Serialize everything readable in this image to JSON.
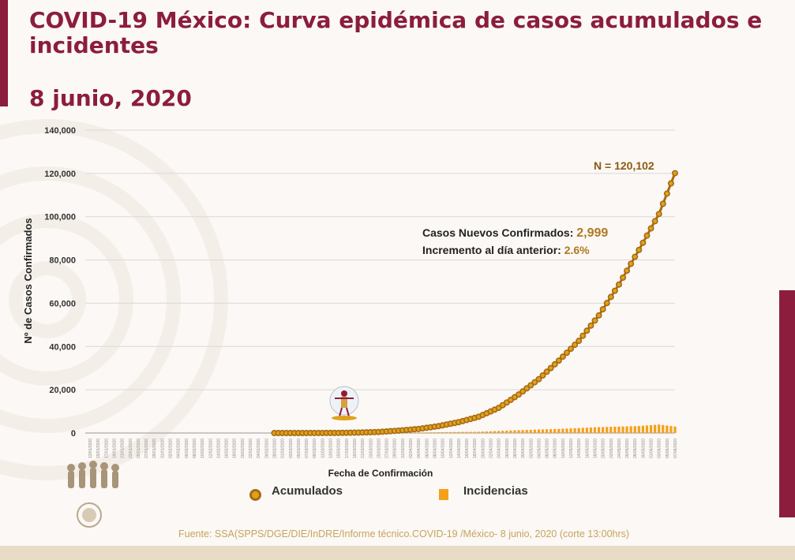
{
  "header": {
    "title_line1": "COVID-19 México: Curva epidémica de casos acumulados e",
    "title_line2": "incidentes",
    "date": "8 junio, 2020"
  },
  "annotation": {
    "new_cases_label": "Casos Nuevos Confirmados:",
    "new_cases_value": "2,999",
    "increase_label": "Incremento al día anterior:",
    "increase_value": "2.6%",
    "total_label": "N = 120,102"
  },
  "legend": {
    "accumulated": "Acumulados",
    "incidences": "Incidencias"
  },
  "source": "Fuente: SSA(SPPS/DGE/DIE/InDRE/Informe técnico.COVID-19 /México- 8 junio, 2020 (corte 13:00hrs)",
  "colors": {
    "brand": "#8c1d3c",
    "cumulative_line": "#a66a14",
    "cumulative_marker": "#e0a21c",
    "incidence_bar": "#f5a01a"
  },
  "icons": [
    "silhouette-icon",
    "emblem-icon",
    "seal-icon"
  ],
  "chart_data": {
    "type": "line",
    "xlabel": "Fecha de Confirmación",
    "ylabel": "Nº de Casos Confirmados",
    "ylim": [
      0,
      140000
    ],
    "yticks": [
      0,
      20000,
      40000,
      60000,
      80000,
      100000,
      120000,
      140000
    ],
    "ytick_labels": [
      "0",
      "20,000",
      "40,000",
      "60,000",
      "80,000",
      "100,000",
      "120,000",
      "140,000"
    ],
    "grid": true,
    "legend_position": "bottom",
    "x_start": "2020-01-13",
    "x_end": "2020-06-07",
    "series": [
      {
        "name": "Acumulados",
        "type": "line",
        "points": [
          [
            "2020-02-28",
            1
          ],
          [
            "2020-03-05",
            5
          ],
          [
            "2020-03-10",
            7
          ],
          [
            "2020-03-15",
            53
          ],
          [
            "2020-03-20",
            203
          ],
          [
            "2020-03-25",
            475
          ],
          [
            "2020-03-30",
            1094
          ],
          [
            "2020-04-04",
            1890
          ],
          [
            "2020-04-09",
            3181
          ],
          [
            "2020-04-14",
            5014
          ],
          [
            "2020-04-19",
            7497
          ],
          [
            "2020-04-24",
            11633
          ],
          [
            "2020-04-29",
            17799
          ],
          [
            "2020-05-04",
            24905
          ],
          [
            "2020-05-09",
            33460
          ],
          [
            "2020-05-14",
            42595
          ],
          [
            "2020-05-19",
            54346
          ],
          [
            "2020-05-24",
            68620
          ],
          [
            "2020-05-29",
            84627
          ],
          [
            "2020-06-03",
            101238
          ],
          [
            "2020-06-07",
            120102
          ]
        ]
      },
      {
        "name": "Incidencias",
        "type": "bar",
        "points": [
          [
            "2020-03-20",
            49
          ],
          [
            "2020-03-30",
            101
          ],
          [
            "2020-04-09",
            360
          ],
          [
            "2020-04-19",
            594
          ],
          [
            "2020-04-29",
            1306
          ],
          [
            "2020-05-09",
            1906
          ],
          [
            "2020-05-19",
            2713
          ],
          [
            "2020-05-29",
            3227
          ],
          [
            "2020-06-03",
            3912
          ],
          [
            "2020-06-07",
            2999
          ]
        ]
      }
    ]
  }
}
